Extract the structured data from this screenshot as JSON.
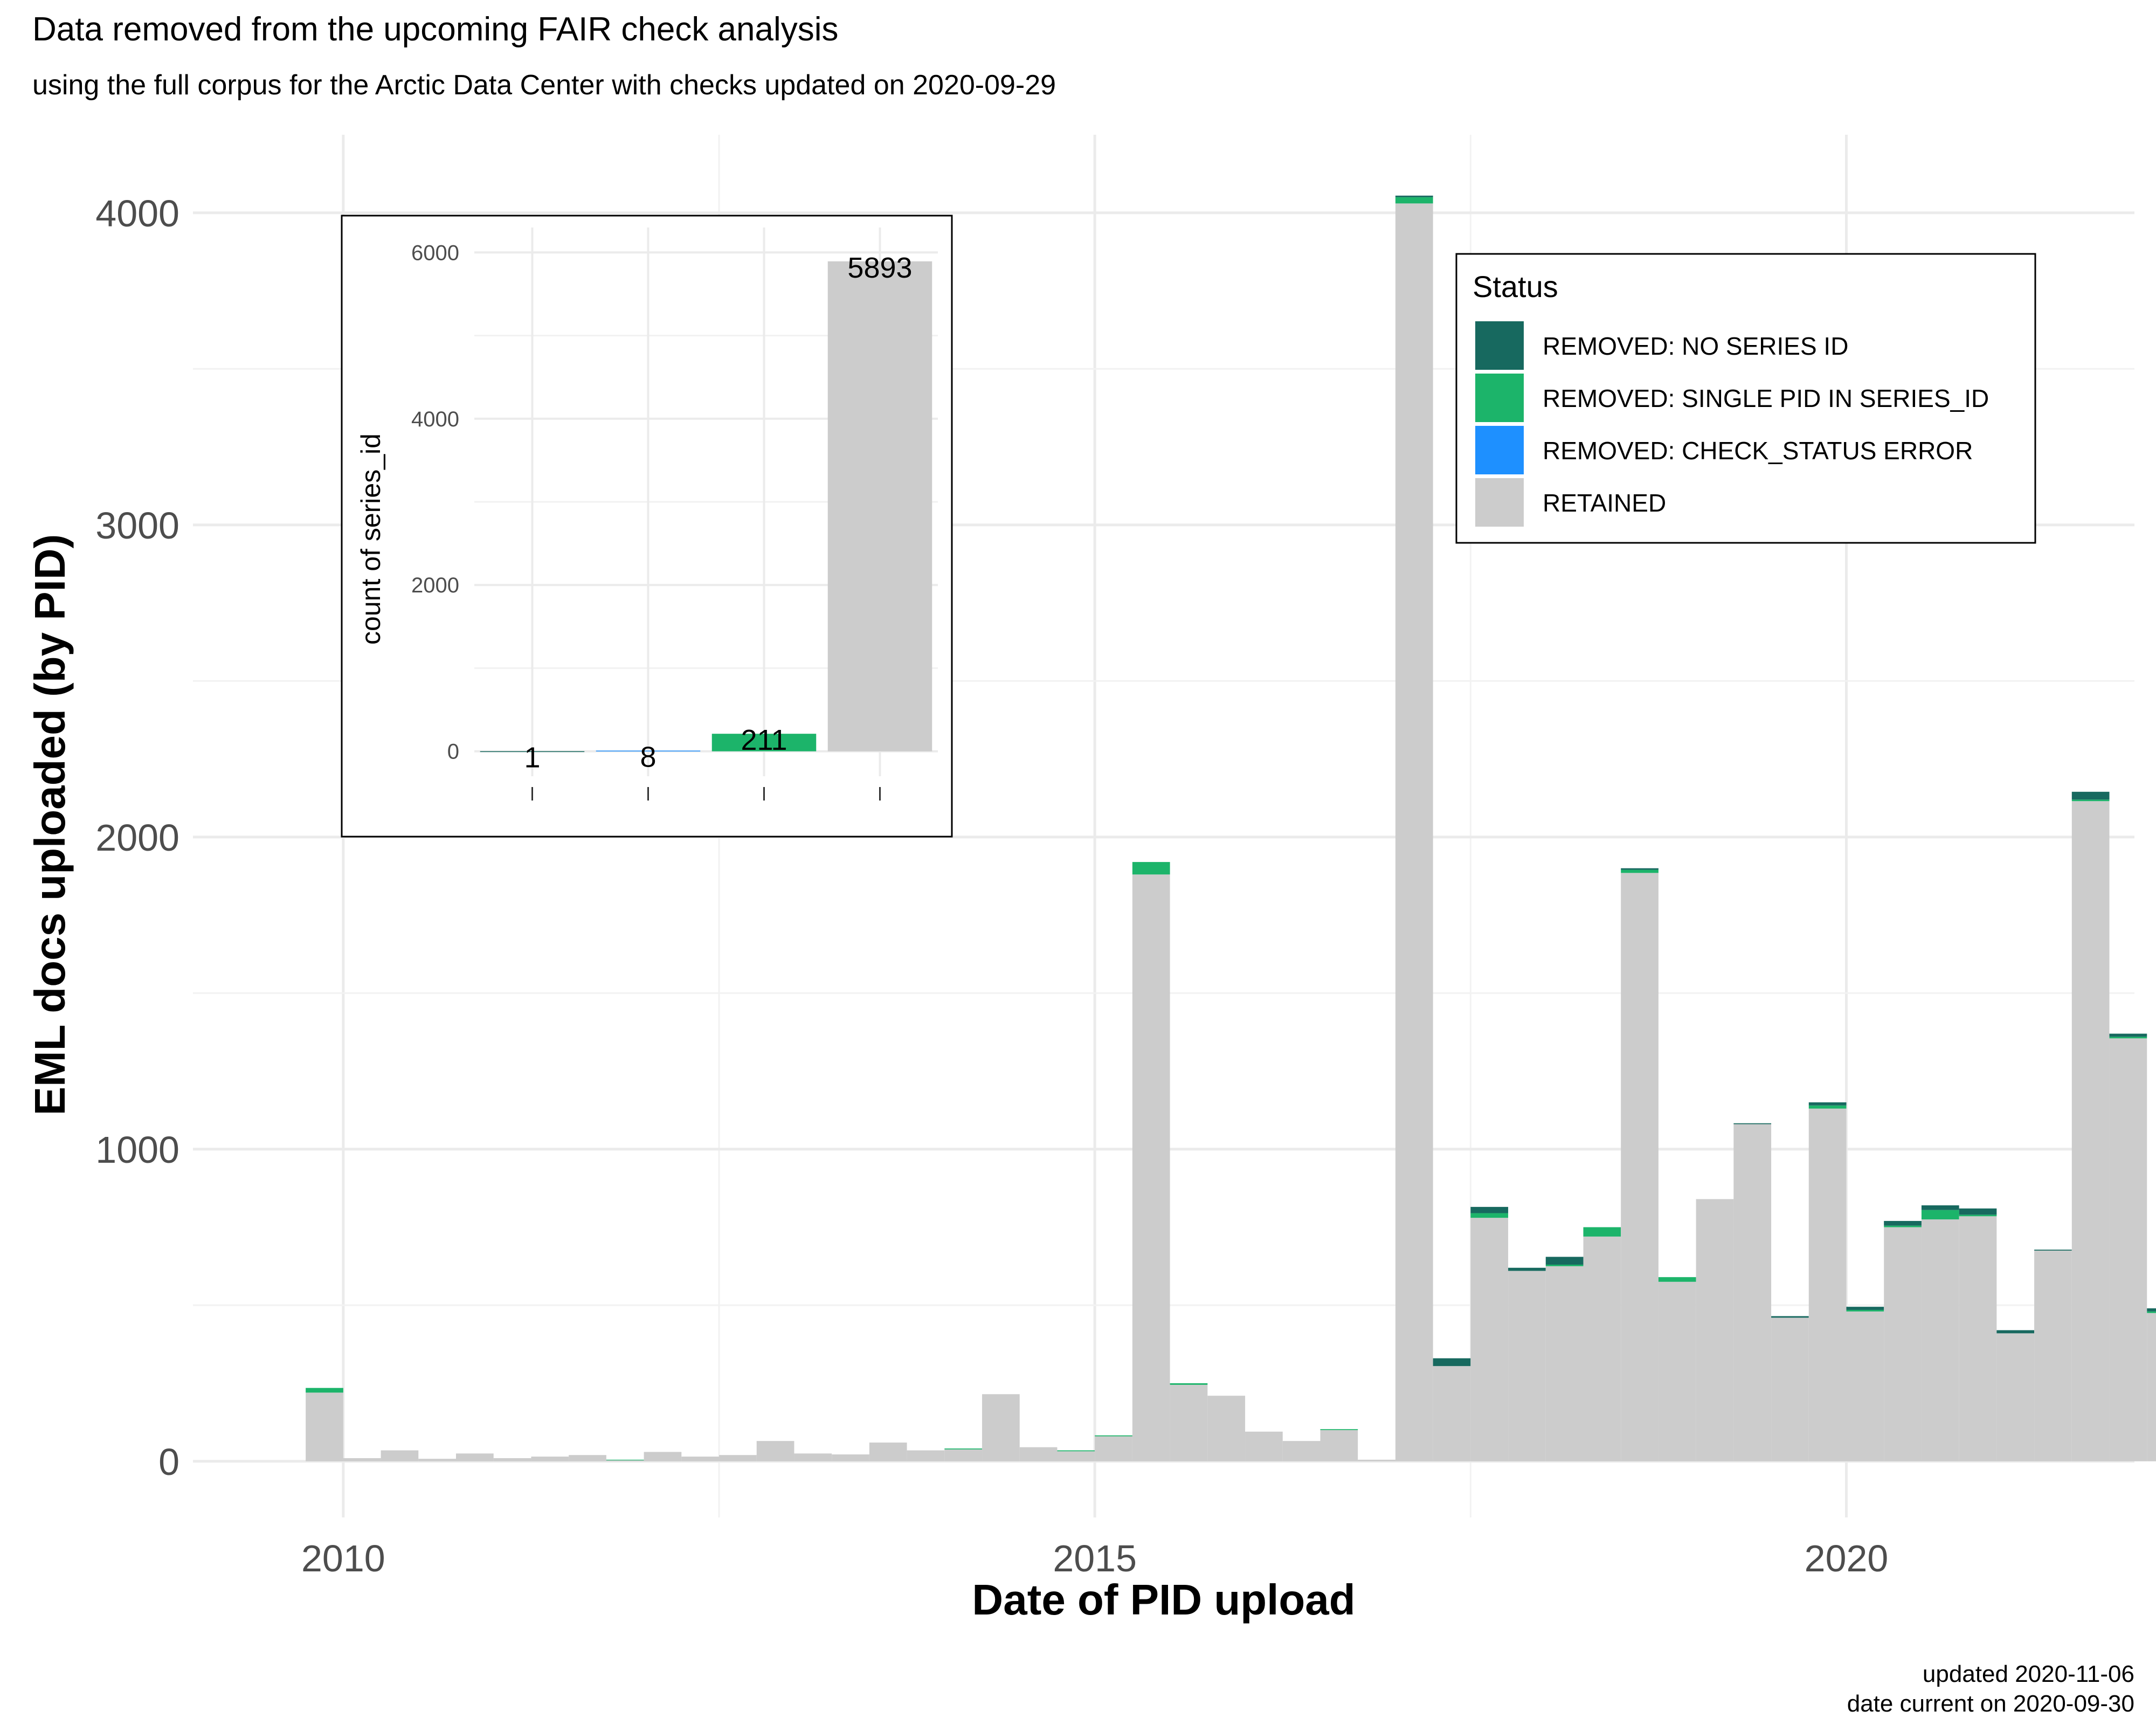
{
  "chart_data": {
    "type": "bar",
    "stacked": true,
    "title": "Data removed from the upcoming FAIR check analysis",
    "subtitle": "using the full corpus for the Arctic Data Center with checks updated on 2020-09-29",
    "xlabel": "Date of PID upload",
    "ylabel": "EML docs uploaded (by PID)",
    "caption": [
      "updated 2020-11-06",
      "date current on 2020-09-30"
    ],
    "x_ticks": [
      "2010",
      "2015",
      "2020"
    ],
    "y_ticks": [
      "0",
      "1000",
      "2000",
      "3000",
      "4000"
    ],
    "ylim": [
      -180,
      4250
    ],
    "xlim": [
      "2009-01",
      "2021-12"
    ],
    "grid": true,
    "legend": {
      "title": "Status",
      "position": "top-right",
      "entries": [
        {
          "label": "REMOVED: NO SERIES ID",
          "color": "#17695f"
        },
        {
          "label": "REMOVED: SINGLE PID IN SERIES_ID",
          "color": "#1cb46a"
        },
        {
          "label": "REMOVED: CHECK_STATUS ERROR",
          "color": "#1e90ff"
        },
        {
          "label": "RETAINED",
          "color": "#cccccc"
        }
      ]
    },
    "series_order": [
      "RETAINED",
      "REMOVED: CHECK_STATUS ERROR",
      "REMOVED: SINGLE PID IN SERIES_ID",
      "REMOVED: NO SERIES ID"
    ],
    "bins": [
      {
        "start": "2009-10",
        "end": "2010-01",
        "values": [
          220,
          0,
          15,
          0
        ]
      },
      {
        "start": "2010-01",
        "end": "2010-04",
        "values": [
          10,
          0,
          0,
          0
        ]
      },
      {
        "start": "2010-04",
        "end": "2010-07",
        "values": [
          35,
          0,
          0,
          0
        ]
      },
      {
        "start": "2010-07",
        "end": "2010-10",
        "values": [
          8,
          0,
          0,
          0
        ]
      },
      {
        "start": "2010-10",
        "end": "2011-01",
        "values": [
          25,
          0,
          0,
          0
        ]
      },
      {
        "start": "2011-01",
        "end": "2011-04",
        "values": [
          10,
          0,
          0,
          0
        ]
      },
      {
        "start": "2011-04",
        "end": "2011-07",
        "values": [
          15,
          0,
          0,
          0
        ]
      },
      {
        "start": "2011-07",
        "end": "2011-10",
        "values": [
          20,
          0,
          0,
          0
        ]
      },
      {
        "start": "2011-10",
        "end": "2012-01",
        "values": [
          3,
          0,
          2,
          0
        ]
      },
      {
        "start": "2012-01",
        "end": "2012-04",
        "values": [
          30,
          0,
          0,
          0
        ]
      },
      {
        "start": "2012-04",
        "end": "2012-07",
        "values": [
          15,
          0,
          0,
          0
        ]
      },
      {
        "start": "2012-07",
        "end": "2012-10",
        "values": [
          20,
          0,
          0,
          0
        ]
      },
      {
        "start": "2012-10",
        "end": "2013-01",
        "values": [
          65,
          0,
          0,
          0
        ]
      },
      {
        "start": "2013-01",
        "end": "2013-04",
        "values": [
          25,
          0,
          0,
          0
        ]
      },
      {
        "start": "2013-04",
        "end": "2013-07",
        "values": [
          22,
          0,
          0,
          0
        ]
      },
      {
        "start": "2013-07",
        "end": "2013-10",
        "values": [
          60,
          0,
          0,
          0
        ]
      },
      {
        "start": "2013-10",
        "end": "2014-01",
        "values": [
          35,
          0,
          0,
          0
        ]
      },
      {
        "start": "2014-01",
        "end": "2014-04",
        "values": [
          38,
          0,
          3,
          0
        ]
      },
      {
        "start": "2014-04",
        "end": "2014-07",
        "values": [
          215,
          0,
          0,
          0
        ]
      },
      {
        "start": "2014-07",
        "end": "2014-10",
        "values": [
          45,
          0,
          0,
          0
        ]
      },
      {
        "start": "2014-10",
        "end": "2015-01",
        "values": [
          32,
          0,
          3,
          0
        ]
      },
      {
        "start": "2015-01",
        "end": "2015-04",
        "values": [
          80,
          0,
          3,
          0
        ]
      },
      {
        "start": "2015-04",
        "end": "2015-07",
        "values": [
          1880,
          0,
          40,
          0
        ]
      },
      {
        "start": "2015-07",
        "end": "2015-10",
        "values": [
          245,
          0,
          5,
          0
        ]
      },
      {
        "start": "2015-10",
        "end": "2016-01",
        "values": [
          210,
          0,
          0,
          0
        ]
      },
      {
        "start": "2016-01",
        "end": "2016-04",
        "values": [
          95,
          0,
          0,
          0
        ]
      },
      {
        "start": "2016-04",
        "end": "2016-07",
        "values": [
          65,
          0,
          0,
          0
        ]
      },
      {
        "start": "2016-07",
        "end": "2016-10",
        "values": [
          100,
          0,
          3,
          0
        ]
      },
      {
        "start": "2016-10",
        "end": "2017-01",
        "values": [
          5,
          0,
          0,
          0
        ]
      },
      {
        "start": "2017-01",
        "end": "2017-04",
        "values": [
          4030,
          0,
          20,
          5
        ]
      },
      {
        "start": "2017-04",
        "end": "2017-07",
        "values": [
          305,
          0,
          0,
          25
        ]
      },
      {
        "start": "2017-07",
        "end": "2017-10",
        "values": [
          780,
          0,
          15,
          20
        ]
      },
      {
        "start": "2017-10",
        "end": "2018-01",
        "values": [
          610,
          0,
          0,
          10
        ]
      },
      {
        "start": "2018-01",
        "end": "2018-04",
        "values": [
          625,
          0,
          5,
          25
        ]
      },
      {
        "start": "2018-04",
        "end": "2018-07",
        "values": [
          720,
          0,
          30,
          0
        ]
      },
      {
        "start": "2018-07",
        "end": "2018-10",
        "values": [
          1885,
          0,
          10,
          5
        ]
      },
      {
        "start": "2018-10",
        "end": "2019-01",
        "values": [
          575,
          0,
          15,
          0
        ]
      },
      {
        "start": "2019-01",
        "end": "2019-04",
        "values": [
          840,
          0,
          0,
          0
        ]
      },
      {
        "start": "2019-04",
        "end": "2019-07",
        "values": [
          1080,
          0,
          0,
          3
        ]
      },
      {
        "start": "2019-07",
        "end": "2019-10",
        "values": [
          460,
          0,
          0,
          5
        ]
      },
      {
        "start": "2019-10",
        "end": "2020-01",
        "values": [
          1130,
          0,
          10,
          10
        ]
      },
      {
        "start": "2020-01",
        "end": "2020-04",
        "values": [
          480,
          0,
          5,
          10
        ]
      },
      {
        "start": "2020-04",
        "end": "2020-07",
        "values": [
          750,
          0,
          5,
          15
        ]
      },
      {
        "start": "2020-07",
        "end": "2020-10",
        "values": [
          775,
          0,
          30,
          15
        ]
      },
      {
        "start": "2020-10",
        "end": "2021-01",
        "values": [
          785,
          0,
          5,
          20
        ]
      },
      {
        "start": "2021-01",
        "end": "2021-04",
        "values": [
          410,
          0,
          0,
          10
        ]
      },
      {
        "start": "2021-04",
        "end": "2021-07",
        "values": [
          675,
          0,
          0,
          3
        ]
      },
      {
        "start": "2021-07",
        "end": "2021-10",
        "values": [
          2115,
          0,
          5,
          25
        ]
      },
      {
        "start": "2021-10",
        "end": "2022-01",
        "values": [
          1355,
          0,
          5,
          10
        ]
      },
      {
        "start": "2022-01",
        "end": "2022-04",
        "values": [
          475,
          0,
          5,
          10
        ]
      }
    ],
    "inset": {
      "type": "bar",
      "ylabel": "count of series_id",
      "y_ticks": [
        "0",
        "2000",
        "4000",
        "6000"
      ],
      "ylim": [
        -300,
        6300
      ],
      "categories": [
        "REMOVED: NO SERIES ID",
        "REMOVED: CHECK_STATUS ERROR",
        "REMOVED: SINGLE PID IN SERIES_ID",
        "RETAINED"
      ],
      "values": [
        1,
        8,
        211,
        5893
      ],
      "labels": [
        "1",
        "8",
        "211",
        "5893"
      ],
      "colors": [
        "#17695f",
        "#1e90ff",
        "#1cb46a",
        "#cccccc"
      ]
    }
  }
}
